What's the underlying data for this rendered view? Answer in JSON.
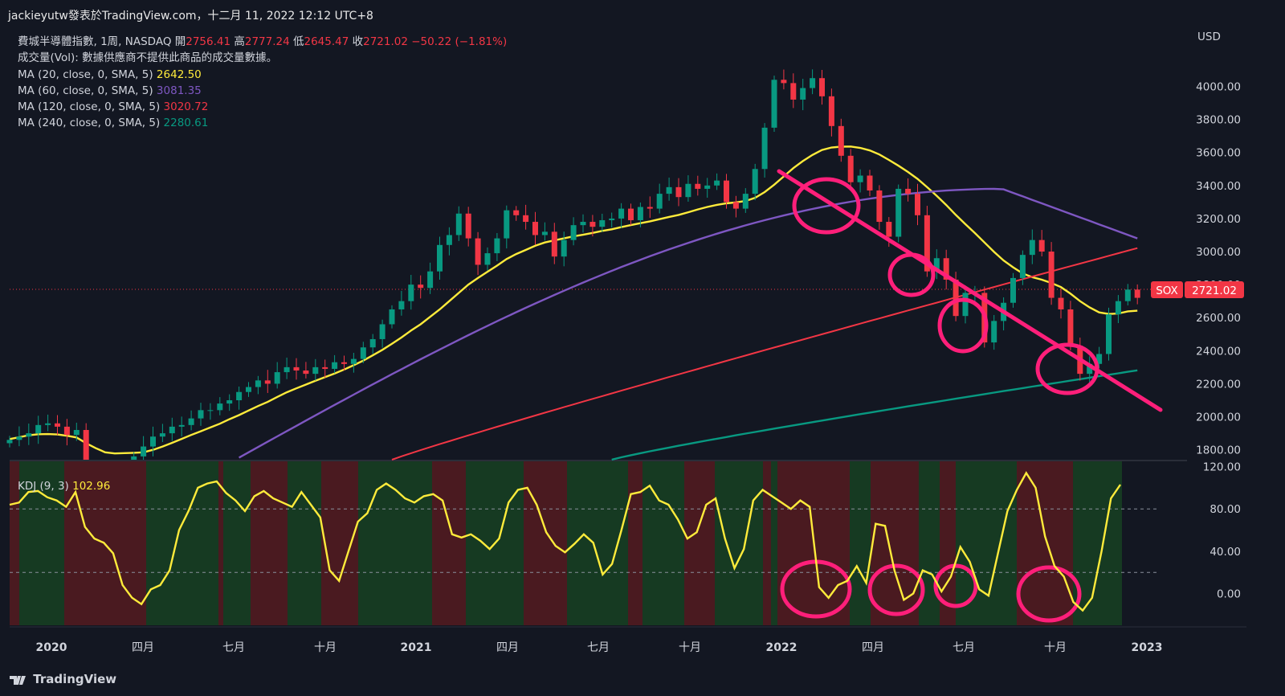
{
  "header": {
    "text": "jackieyutw發表於TradingView.com，十二月 11, 2022 12:12 UTC+8"
  },
  "legend": {
    "symbol": "費城半導體指數, 1周, NASDAQ",
    "open_label": "開",
    "open": "2756.41",
    "high_label": "高",
    "high": "2777.24",
    "low_label": "低",
    "low": "2645.47",
    "close_label": "收",
    "close": "2721.02",
    "change": "−50.22 (−1.81%)",
    "volume": "成交量(Vol): 數據供應商不提供此商品的成交量數據。",
    "ma": [
      {
        "label": "MA (20, close, 0, SMA, 5)",
        "value": "2642.50",
        "color": "#ffeb3b"
      },
      {
        "label": "MA (60, close, 0, SMA, 5)",
        "value": "3081.35",
        "color": "#7e57c2"
      },
      {
        "label": "MA (120, close, 0, SMA, 5)",
        "value": "3020.72",
        "color": "#f23645"
      },
      {
        "label": "MA (240, close, 0, SMA, 5)",
        "value": "2280.61",
        "color": "#089981"
      }
    ]
  },
  "price_axis": {
    "currency": "USD",
    "symbol_tag": "SOX",
    "last_price": "2721.02"
  },
  "kdj": {
    "label": "KDJ (9, 3)",
    "value": "102.96"
  },
  "footer": {
    "brand": "TradingView"
  },
  "colors": {
    "up": "#089981",
    "down": "#f23645",
    "bg": "#131722",
    "annotation": "#ff1f7a"
  },
  "chart_data": {
    "type": "candlestick",
    "y_axis": {
      "ticks": [
        "4000.00",
        "3800.00",
        "3600.00",
        "3400.00",
        "3200.00",
        "3000.00",
        "2800.00",
        "2600.00",
        "2400.00",
        "2200.00",
        "2000.00",
        "1800.00"
      ],
      "range": [
        1740,
        4270
      ]
    },
    "x_axis": {
      "ticks": [
        "2020",
        "四月",
        "七月",
        "十月",
        "2021",
        "四月",
        "七月",
        "十月",
        "2022",
        "四月",
        "七月",
        "十月",
        "2023"
      ]
    },
    "kdj_axis": {
      "ticks": [
        "120.00",
        "80.00",
        "40.00",
        "0.00"
      ],
      "range": [
        -30,
        125
      ],
      "bands": [
        80,
        20
      ]
    },
    "weekly_close": [
      1860,
      1880,
      1900,
      1950,
      1960,
      1940,
      1890,
      1920,
      1700,
      1600,
      1500,
      1650,
      1720,
      1760,
      1820,
      1880,
      1900,
      1940,
      1950,
      1990,
      2040,
      2040,
      2080,
      2100,
      2150,
      2180,
      2220,
      2200,
      2270,
      2300,
      2280,
      2260,
      2300,
      2290,
      2330,
      2320,
      2350,
      2420,
      2470,
      2560,
      2650,
      2700,
      2800,
      2780,
      2880,
      3040,
      3100,
      3230,
      3080,
      2920,
      2990,
      3080,
      3250,
      3220,
      3180,
      3100,
      3120,
      2970,
      3070,
      3160,
      3180,
      3150,
      3190,
      3200,
      3260,
      3190,
      3270,
      3260,
      3350,
      3390,
      3330,
      3410,
      3380,
      3400,
      3430,
      3300,
      3260,
      3350,
      3500,
      3750,
      4040,
      4020,
      3920,
      3990,
      4050,
      3940,
      3760,
      3580,
      3420,
      3460,
      3370,
      3180,
      3090,
      3380,
      3350,
      3220,
      2880,
      2960,
      2830,
      2610,
      2750,
      2750,
      2450,
      2580,
      2690,
      2840,
      2980,
      3070,
      3000,
      2720,
      2650,
      2430,
      2260,
      2320,
      2380,
      2620,
      2700,
      2770,
      2720
    ],
    "ma20": [
      1865,
      1876,
      1888,
      1894,
      1895,
      1893,
      1885,
      1875,
      1840,
      1810,
      1785,
      1778,
      1780,
      1782,
      1785,
      1800,
      1820,
      1842,
      1866,
      1890,
      1912,
      1935,
      1958,
      1985,
      2010,
      2038,
      2065,
      2090,
      2120,
      2148,
      2172,
      2195,
      2218,
      2240,
      2262,
      2286,
      2312,
      2340,
      2372,
      2405,
      2442,
      2480,
      2522,
      2560,
      2605,
      2650,
      2700,
      2750,
      2800,
      2840,
      2878,
      2915,
      2955,
      2985,
      3010,
      3035,
      3055,
      3068,
      3080,
      3092,
      3102,
      3113,
      3125,
      3135,
      3148,
      3160,
      3172,
      3183,
      3196,
      3210,
      3222,
      3238,
      3255,
      3270,
      3283,
      3292,
      3298,
      3306,
      3325,
      3360,
      3405,
      3455,
      3505,
      3548,
      3585,
      3615,
      3630,
      3635,
      3636,
      3628,
      3612,
      3588,
      3555,
      3520,
      3482,
      3440,
      3390,
      3338,
      3282,
      3222,
      3166,
      3112,
      3055,
      2998,
      2946,
      2905,
      2868,
      2845,
      2830,
      2810,
      2785,
      2745,
      2700,
      2662,
      2632,
      2622,
      2625,
      2638,
      2642
    ],
    "ma60_range": [
      1720,
      3081
    ],
    "ma120_range": [
      1740,
      3021
    ],
    "ma240_range": [
      1740,
      2281
    ]
  }
}
